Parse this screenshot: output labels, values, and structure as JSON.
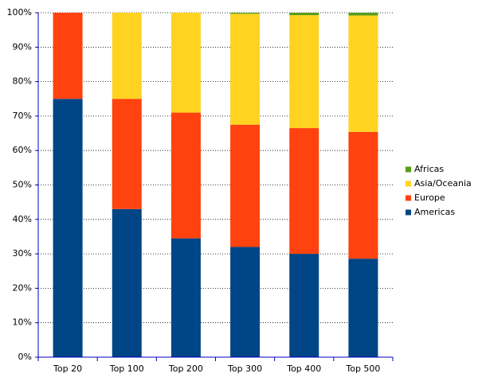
{
  "chart_data": {
    "type": "stacked_bar",
    "categories": [
      "Top 20",
      "Top 100",
      "Top 200",
      "Top 300",
      "Top 400",
      "Top 500"
    ],
    "series": [
      {
        "name": "Americas",
        "color": "#004586",
        "values": [
          75,
          43,
          34.5,
          32,
          30,
          28.6
        ]
      },
      {
        "name": "Europe",
        "color": "#ff420e",
        "values": [
          25,
          32,
          36.5,
          35.5,
          36.5,
          36.8
        ]
      },
      {
        "name": "Asia/Oceania",
        "color": "#ffd320",
        "values": [
          0,
          25,
          29,
          32.2,
          32.8,
          33.8
        ]
      },
      {
        "name": "Africas",
        "color": "#579d1c",
        "values": [
          0,
          0,
          0,
          0.3,
          0.7,
          0.8
        ]
      }
    ],
    "ylim": [
      0,
      100
    ],
    "yticks": [
      {
        "value": 0,
        "label": "0%"
      },
      {
        "value": 10,
        "label": "10%"
      },
      {
        "value": 20,
        "label": "20%"
      },
      {
        "value": 30,
        "label": "30%"
      },
      {
        "value": 40,
        "label": "40%"
      },
      {
        "value": 50,
        "label": "50%"
      },
      {
        "value": 60,
        "label": "60%"
      },
      {
        "value": 70,
        "label": "70%"
      },
      {
        "value": 80,
        "label": "80%"
      },
      {
        "value": 90,
        "label": "90%"
      },
      {
        "value": 100,
        "label": "100%"
      }
    ],
    "grid": true,
    "legend": "right"
  }
}
